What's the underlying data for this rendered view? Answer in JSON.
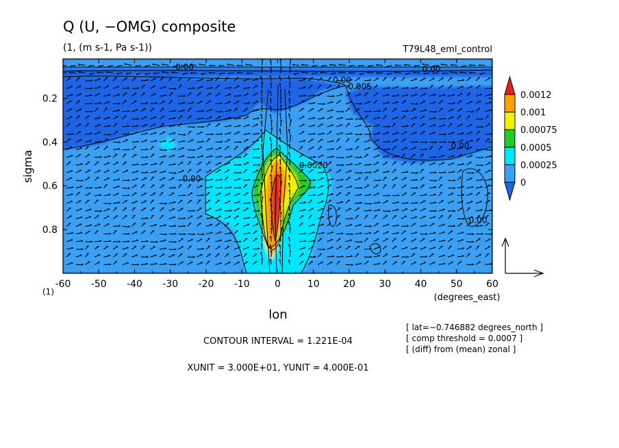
{
  "chart_data": {
    "type": "heatmap",
    "title": "Q (U, −OMG) composite",
    "subtitle": "(1, (m s-1, Pa s-1))",
    "run_label": "T79L48_eml_control",
    "xlabel": "lon",
    "x_units": "(degrees_east)",
    "ylabel": "sigma",
    "y_corner_label": "(1)",
    "xlim": [
      -60,
      60
    ],
    "ylim": [
      1.0,
      0.02
    ],
    "y_reversed": true,
    "x_ticks": [
      -60,
      -50,
      -40,
      -30,
      -20,
      -10,
      0,
      10,
      20,
      30,
      40,
      50,
      60
    ],
    "x_tick_labels": [
      "-60",
      "-50",
      "-40",
      "-30",
      "-20",
      "-10",
      "0",
      "10",
      "20",
      "30",
      "40",
      "50",
      "60"
    ],
    "y_ticks": [
      0.2,
      0.4,
      0.6,
      0.8
    ],
    "y_tick_labels": [
      "0.2",
      "0.4",
      "0.6",
      "0.8"
    ],
    "colorbar": {
      "levels": [
        0,
        0.00025,
        0.0005,
        0.00075,
        0.001,
        0.0012
      ],
      "labels": [
        "0",
        "0.00025",
        "0.0005",
        "0.00075",
        "0.001",
        "0.0012"
      ],
      "colors": [
        "#1e64e6",
        "#3aa0f4",
        "#00e6ff",
        "#22cc22",
        "#f2f200",
        "#ffa000",
        "#ee1c1c"
      ]
    },
    "contour_labels": [
      {
        "text": "0.00",
        "lon": -24,
        "sigma": 0.58
      },
      {
        "text": "0.00",
        "lon": 51,
        "sigma": 0.43
      },
      {
        "text": "0.00",
        "lon": 56,
        "sigma": 0.77
      },
      {
        "text": "0.005",
        "lon": 23,
        "sigma": 0.16
      },
      {
        "text": "0.00",
        "lon": 18,
        "sigma": 0.13
      },
      {
        "text": "0.00",
        "lon": -26,
        "sigma": 0.07
      },
      {
        "text": "0.00",
        "lon": 43,
        "sigma": 0.08
      },
      {
        "text": "0.0020",
        "lon": 10,
        "sigma": 0.52
      }
    ],
    "vector_reference": {
      "xunit": 30.0,
      "yunit": 0.4
    },
    "notes": {
      "contour_interval": "CONTOUR INTERVAL = 1.221E-04",
      "units_line": "XUNIT = 3.000E+01, YUNIT = 4.000E-01",
      "lat": "[ lat=−0.746882 degrees_north ]",
      "threshold": "[ comp threshold = 0.0007 ]",
      "diff": "[ (diff) from (mean) zonal ]"
    }
  }
}
